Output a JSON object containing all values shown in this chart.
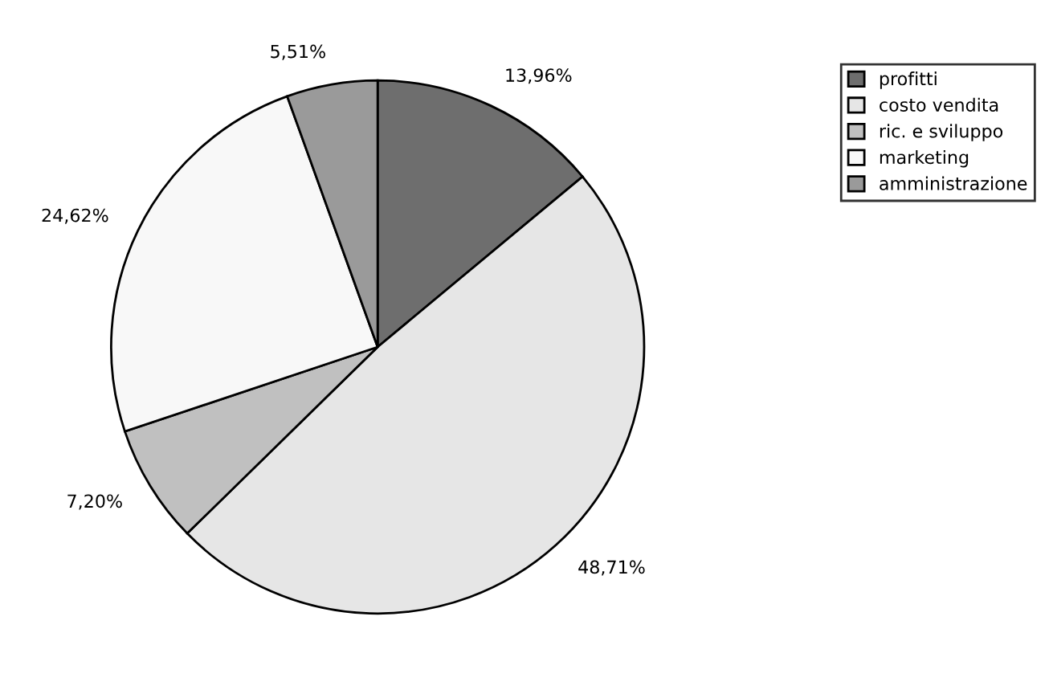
{
  "chart_data": {
    "type": "pie",
    "categories": [
      "profitti",
      "costo vendita",
      "ric. e sviluppo",
      "marketing",
      "amministrazione"
    ],
    "values": [
      13.96,
      48.71,
      7.2,
      24.62,
      5.51
    ],
    "value_labels": [
      "13,96%",
      "48,71%",
      "7,20%",
      "24,62%",
      "5,51%"
    ],
    "colors": [
      "#6e6e6e",
      "#e6e6e6",
      "#c0c0c0",
      "#f8f8f8",
      "#9a9a9a"
    ],
    "legend": "top right"
  }
}
